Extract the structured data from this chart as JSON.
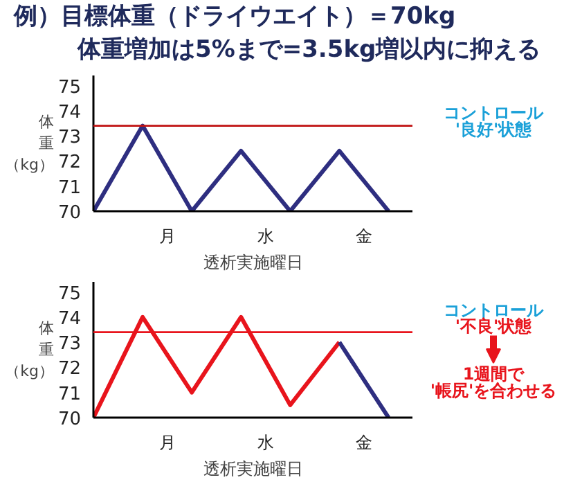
{
  "chart_data": [
    {
      "type": "line",
      "title": "例）目標体重（ドライウエイト）＝70kg",
      "subtitle": "体重増加は5%まで=3.5kg増以内に抑える",
      "xlabel": "透析実施曜日",
      "ylabel": "体重（kg）",
      "categories": [
        null,
        null,
        null,
        "月",
        null,
        null,
        null,
        "水",
        null,
        null,
        null,
        "金",
        null
      ],
      "ylim": [
        70,
        75.4
      ],
      "yticks": [
        70,
        71,
        72,
        73,
        74,
        75
      ],
      "grid": false,
      "marker": "none",
      "line_style": "solid",
      "series": [
        {
          "color": "#2e2e80",
          "values": [
            70,
            71.7,
            73.4,
            71.7,
            70,
            71.2,
            72.4,
            71.2,
            70,
            71.2,
            72.4,
            71.2,
            70
          ]
        }
      ],
      "ref_lines": [
        {
          "axis": "y",
          "value": 73.4,
          "color": "#c01010"
        }
      ],
      "annotations": [
        "コントロール",
        "'良好'状態"
      ]
    },
    {
      "type": "line",
      "xlabel": "透析実施曜日",
      "ylabel": "体重（kg）",
      "categories": [
        null,
        null,
        null,
        "月",
        null,
        null,
        null,
        "水",
        null,
        null,
        null,
        "金",
        null
      ],
      "ylim": [
        70,
        75.4
      ],
      "yticks": [
        70,
        71,
        72,
        73,
        74,
        75
      ],
      "grid": false,
      "marker": "none",
      "line_style": "solid",
      "series": [
        {
          "color": "#e8141c",
          "values": [
            70,
            72,
            74,
            72.5,
            71,
            72.5,
            74,
            72.25,
            70.5,
            71.75,
            73,
            null,
            null
          ]
        },
        {
          "color": "#2e2e80",
          "values": [
            null,
            null,
            null,
            null,
            null,
            null,
            null,
            null,
            null,
            null,
            73,
            71.5,
            70
          ]
        }
      ],
      "ref_lines": [
        {
          "axis": "y",
          "value": 73.4,
          "color": "#e8141c"
        }
      ],
      "annotations": [
        "コントロール",
        "'不良'状態",
        "1週間で",
        "'帳尻'を合わせる"
      ]
    }
  ]
}
